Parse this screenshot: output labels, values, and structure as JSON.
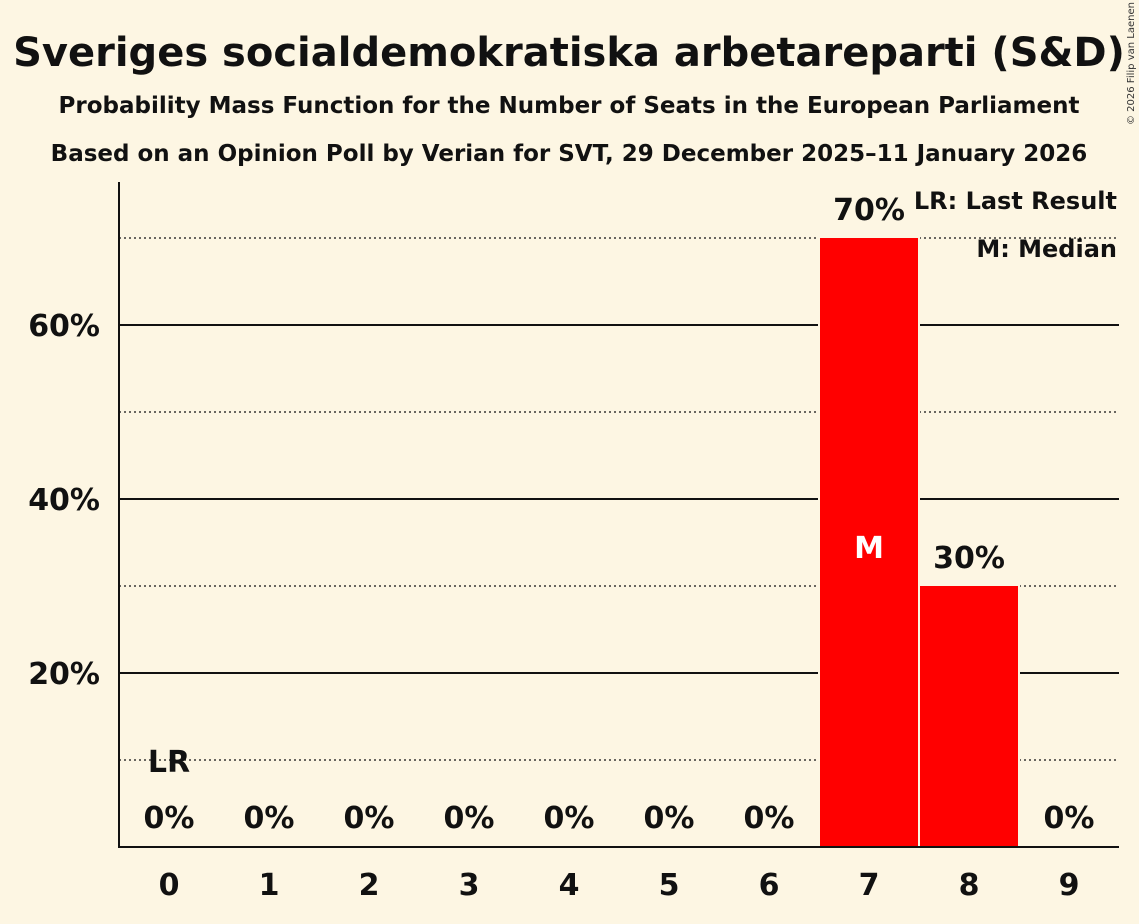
{
  "chart_data": {
    "type": "bar",
    "title": "Sveriges socialdemokratiska arbetareparti (S&D)",
    "subtitle1": "Probability Mass Function for the Number of Seats in the European Parliament",
    "subtitle2": "Based on an Opinion Poll by Verian for SVT, 29 December 2025–11 January 2026",
    "categories": [
      "0",
      "1",
      "2",
      "3",
      "4",
      "5",
      "6",
      "7",
      "8",
      "9"
    ],
    "values": [
      0,
      0,
      0,
      0,
      0,
      0,
      0,
      70,
      30,
      0
    ],
    "value_labels": [
      "0%",
      "0%",
      "0%",
      "0%",
      "0%",
      "0%",
      "0%",
      "70%",
      "30%",
      "0%"
    ],
    "ylim": [
      0,
      76
    ],
    "yticks": [
      20,
      40,
      60
    ],
    "ytick_labels": [
      "20%",
      "40%",
      "60%"
    ],
    "minor_gridlines": [
      10,
      30,
      50,
      70
    ],
    "bar_color": "#ff0000",
    "last_result": {
      "category": "0",
      "marker": "LR"
    },
    "median": {
      "category": "7",
      "marker": "M"
    },
    "legend": [
      "LR: Last Result",
      "M: Median"
    ],
    "legend_position": "top-right",
    "copyright": "© 2026 Filip van Laenen"
  }
}
